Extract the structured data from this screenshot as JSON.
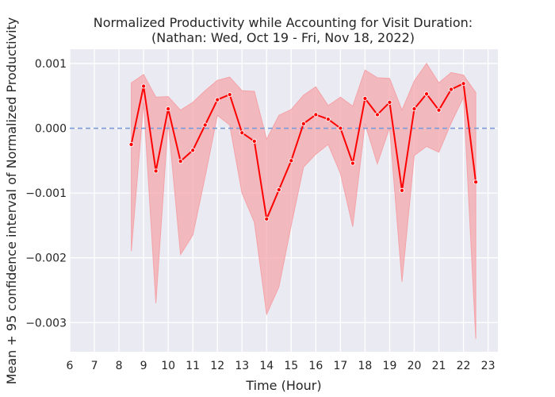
{
  "chart_data": {
    "type": "line",
    "title": [
      "Normalized Productivity while Accounting for Visit Duration:",
      "(Nathan: Wed, Oct 19 - Fri, Nov 18, 2022)"
    ],
    "xlabel": "Time (Hour)",
    "ylabel": "Mean + 95 confidence interval of Normalized Productivity",
    "xlim": [
      6,
      23.4
    ],
    "ylim": [
      -0.00345,
      0.00122
    ],
    "xticks": [
      6,
      7,
      8,
      9,
      10,
      11,
      12,
      13,
      14,
      15,
      16,
      17,
      18,
      19,
      20,
      21,
      22,
      23
    ],
    "xtick_labels": [
      "6",
      "7",
      "8",
      "9",
      "10",
      "11",
      "12",
      "13",
      "14",
      "15",
      "16",
      "17",
      "18",
      "19",
      "20",
      "21",
      "22",
      "23"
    ],
    "yticks": [
      -0.003,
      -0.002,
      -0.001,
      0.0,
      0.001
    ],
    "ytick_labels": [
      "−0.003",
      "−0.002",
      "−0.001",
      "0.000",
      "0.001"
    ],
    "grid": true,
    "reference_line": {
      "y": 0.0,
      "style": "dashed",
      "color": "#7b9bd6"
    },
    "series": [
      {
        "x": [
          8.5,
          9,
          9.5,
          10,
          10.5,
          11,
          11.5,
          12,
          12.5,
          13,
          13.5,
          14,
          14.5,
          15,
          15.5,
          16,
          16.5,
          17,
          17.5,
          18,
          18.5,
          19,
          19.5,
          20,
          20.5,
          21,
          21.5,
          22,
          22.5
        ],
        "y": [
          -0.00025,
          0.00065,
          -0.00066,
          0.0003,
          -0.00051,
          -0.00034,
          5e-05,
          0.00044,
          0.00052,
          -7e-05,
          -0.0002,
          -0.0014,
          -0.00095,
          -0.0005,
          7e-05,
          0.00021,
          0.00014,
          0.0,
          -0.00054,
          0.00046,
          0.00021,
          0.0004,
          -0.00096,
          0.0003,
          0.00053,
          0.00028,
          0.0006,
          0.00069,
          -0.00083
        ],
        "ci_lower": [
          -0.0019,
          0.0004,
          -0.0027,
          0.0001,
          -0.00195,
          -0.00165,
          -0.00075,
          0.0002,
          5e-05,
          -0.001,
          -0.00145,
          -0.00287,
          -0.00245,
          -0.0015,
          -0.0006,
          -0.0004,
          -0.00025,
          -0.0007,
          -0.00152,
          7e-05,
          -0.00055,
          1e-05,
          -0.00237,
          -0.00042,
          -0.00028,
          -0.00037,
          8e-05,
          0.00048,
          -0.00325
        ],
        "ci_upper": [
          0.0007,
          0.00083,
          0.00048,
          0.00049,
          0.00028,
          0.0004,
          0.00058,
          0.00074,
          0.00079,
          0.00058,
          0.00057,
          -0.00017,
          0.0002,
          0.00029,
          0.00051,
          0.00064,
          0.00035,
          0.00048,
          0.00034,
          0.0009,
          0.00078,
          0.00077,
          0.00028,
          0.00073,
          0.001,
          0.0007,
          0.00086,
          0.00082,
          0.00055
        ],
        "line_color": "#ff0000",
        "band_color": "#f4a3a8"
      }
    ]
  }
}
